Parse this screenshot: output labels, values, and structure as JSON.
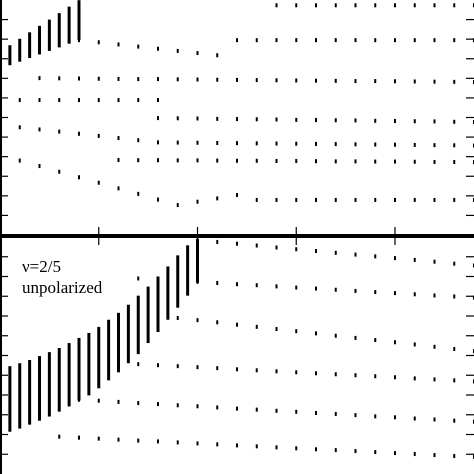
{
  "chart_data": [
    {
      "type": "scatter",
      "color": "#000000",
      "xlim": [
        0,
        24
      ],
      "ylim": [
        0,
        12
      ],
      "xticks": [
        5,
        10,
        15,
        20
      ],
      "yticks": [
        1,
        2,
        3,
        4,
        5,
        6,
        7,
        8,
        9,
        10,
        11
      ],
      "x": [
        0,
        1,
        2,
        3,
        4,
        5,
        6,
        7,
        8,
        9,
        10,
        11,
        12,
        13,
        14,
        15,
        16,
        17,
        18,
        19,
        20,
        21,
        22,
        23,
        24
      ],
      "ranges": {
        "x": [
          0.5,
          1,
          1.5,
          2,
          2.5,
          3,
          3.5,
          4
        ],
        "low": [
          8.67,
          8.85,
          9.04,
          9.22,
          9.4,
          9.58,
          9.77,
          9.95
        ],
        "high": [
          9.69,
          10.02,
          10.35,
          10.68,
          11.0,
          11.33,
          11.66,
          11.99
        ]
      },
      "series": [
        {
          "values": [
            null,
            null,
            null,
            null,
            null,
            null,
            null,
            null,
            null,
            null,
            null,
            null,
            null,
            null,
            11.73,
            11.73,
            11.73,
            11.73,
            11.73,
            11.73,
            11.73,
            11.73,
            11.73,
            11.73,
            11.73
          ]
        },
        {
          "values": [
            null,
            null,
            null,
            null,
            9.95,
            9.84,
            9.73,
            9.62,
            9.51,
            9.4,
            9.29,
            9.18,
            null,
            null,
            null,
            null,
            null,
            null,
            null,
            null,
            null,
            null,
            null,
            null,
            null
          ]
        },
        {
          "values": [
            null,
            null,
            null,
            null,
            null,
            null,
            null,
            null,
            null,
            null,
            null,
            null,
            9.95,
            9.95,
            9.95,
            9.95,
            9.95,
            9.95,
            9.95,
            9.95,
            9.95,
            9.95,
            9.95,
            9.95,
            9.95
          ]
        },
        {
          "values": [
            null,
            null,
            8.01,
            8.0,
            7.99,
            7.98,
            7.97,
            7.96,
            7.96,
            7.95,
            7.94,
            7.93,
            7.92,
            7.91,
            7.9,
            7.89,
            7.88,
            7.87,
            7.86,
            7.86,
            7.85,
            7.84,
            7.83,
            7.82,
            7.81
          ]
        },
        {
          "values": [
            null,
            6.89,
            6.89,
            6.89,
            6.89,
            6.89,
            6.89,
            6.89,
            6.89,
            null,
            null,
            null,
            null,
            null,
            null,
            null,
            null,
            null,
            null,
            null,
            null,
            null,
            null,
            null,
            null
          ]
        },
        {
          "values": [
            null,
            null,
            null,
            null,
            null,
            null,
            null,
            null,
            5.97,
            5.96,
            5.95,
            5.93,
            5.92,
            5.91,
            5.9,
            5.88,
            5.87,
            5.86,
            5.85,
            5.83,
            5.82,
            5.81,
            5.8,
            5.78,
            5.77
          ]
        },
        {
          "values": [
            5.61,
            5.5,
            5.39,
            5.28,
            5.17,
            5.06,
            4.95,
            4.84,
            4.73,
            4.72,
            4.71,
            4.7,
            4.69,
            4.68,
            4.67,
            4.66,
            4.65,
            4.64,
            4.63,
            4.62,
            4.61,
            4.6,
            4.59,
            4.58,
            4.57
          ]
        },
        {
          "values": [
            4.08,
            3.8,
            3.52,
            3.23,
            2.95,
            2.67,
            2.38,
            2.1,
            1.81,
            1.53,
            1.7,
            1.87,
            2.04,
            null,
            null,
            null,
            null,
            null,
            null,
            null,
            null,
            null,
            null,
            null,
            null
          ]
        },
        {
          "values": [
            null,
            null,
            null,
            null,
            null,
            null,
            3.83,
            3.82,
            3.82,
            3.81,
            3.81,
            3.8,
            3.79,
            3.79,
            3.78,
            3.78,
            3.77,
            3.76,
            3.76,
            3.75,
            3.75,
            3.74,
            3.73,
            3.73,
            3.72
          ]
        },
        {
          "values": [
            null,
            null,
            null,
            null,
            null,
            null,
            null,
            null,
            null,
            null,
            null,
            null,
            null,
            1.79,
            1.79,
            1.79,
            1.79,
            1.79,
            1.79,
            1.79,
            1.79,
            1.79,
            1.79,
            1.79,
            1.79
          ]
        }
      ]
    },
    {
      "type": "scatter",
      "color": "#000000",
      "annotations": [
        "ν=2/5",
        "unpolarized"
      ],
      "xlim": [
        0,
        24
      ],
      "ylim": [
        0,
        12
      ],
      "xticks": [
        5,
        10,
        15,
        20
      ],
      "yticks": [
        1,
        2,
        3,
        4,
        5,
        6,
        7,
        8,
        9,
        10,
        11
      ],
      "x": [
        0,
        1,
        2,
        3,
        4,
        5,
        6,
        7,
        8,
        9,
        10,
        11,
        12,
        13,
        14,
        15,
        16,
        17,
        18,
        19,
        20,
        21,
        22,
        23,
        24
      ],
      "ranges": {
        "x": [
          0.5,
          1,
          1.5,
          2,
          2.5,
          3,
          3.5,
          4,
          4.5,
          5,
          5.5,
          6,
          6.5,
          7,
          7.5,
          8,
          8.5,
          9,
          9.5,
          10
        ],
        "low": [
          2.14,
          2.3,
          2.5,
          2.7,
          2.91,
          3.16,
          3.42,
          3.72,
          3.98,
          4.34,
          4.74,
          5.15,
          5.61,
          6.07,
          6.63,
          7.19,
          7.81,
          8.42,
          9.03,
          9.69
        ],
        "high": [
          5.46,
          5.61,
          5.77,
          5.97,
          6.17,
          6.38,
          6.63,
          6.89,
          7.14,
          7.45,
          7.81,
          8.16,
          8.57,
          9.03,
          9.49,
          10,
          10.51,
          11.07,
          11.58,
          11.89
        ]
      },
      "series": [
        {
          "values": [
            null,
            null,
            null,
            null,
            null,
            null,
            null,
            null,
            null,
            null,
            11.84,
            11.75,
            11.66,
            11.57,
            11.47,
            11.38,
            11.29,
            11.2,
            11.11,
            11.02,
            10.93,
            10.84,
            10.75,
            10.65,
            10.56
          ]
        },
        {
          "values": [
            null,
            null,
            null,
            null,
            null,
            null,
            null,
            9.9,
            9.84,
            9.79,
            9.73,
            9.67,
            9.61,
            9.56,
            9.5,
            9.44,
            9.39,
            9.33,
            9.27,
            9.21,
            9.16,
            9.1,
            9.04,
            8.99,
            8.93
          ]
        },
        {
          "values": [
            null,
            null,
            null,
            null,
            null,
            null,
            null,
            null,
            8.01,
            7.9,
            7.79,
            7.68,
            7.56,
            7.45,
            7.34,
            7.23,
            7.12,
            7.0,
            6.89,
            6.78,
            6.67,
            6.56,
            6.44,
            6.33,
            6.22
          ]
        },
        {
          "values": [
            null,
            null,
            null,
            null,
            5.71,
            5.66,
            5.61,
            5.56,
            5.51,
            5.46,
            5.41,
            5.36,
            5.3,
            5.25,
            5.2,
            5.15,
            5.1,
            5.05,
            5.0,
            4.95,
            4.9,
            4.84,
            4.79,
            4.74,
            4.69
          ]
        },
        {
          "values": [
            null,
            3.93,
            3.87,
            3.82,
            3.76,
            3.71,
            3.65,
            3.59,
            3.54,
            3.48,
            3.43,
            3.37,
            3.31,
            3.26,
            3.2,
            3.15,
            3.09,
            3.04,
            2.98,
            2.92,
            2.87,
            2.81,
            2.76,
            2.7,
            2.65
          ]
        },
        {
          "values": [
            null,
            null,
            null,
            1.89,
            1.84,
            1.79,
            1.74,
            1.69,
            1.65,
            1.6,
            1.55,
            1.5,
            1.45,
            1.4,
            1.35,
            1.3,
            1.25,
            1.21,
            1.16,
            1.11,
            1.06,
            1.01,
            0.96,
            0.91,
            0.87
          ]
        }
      ]
    }
  ]
}
